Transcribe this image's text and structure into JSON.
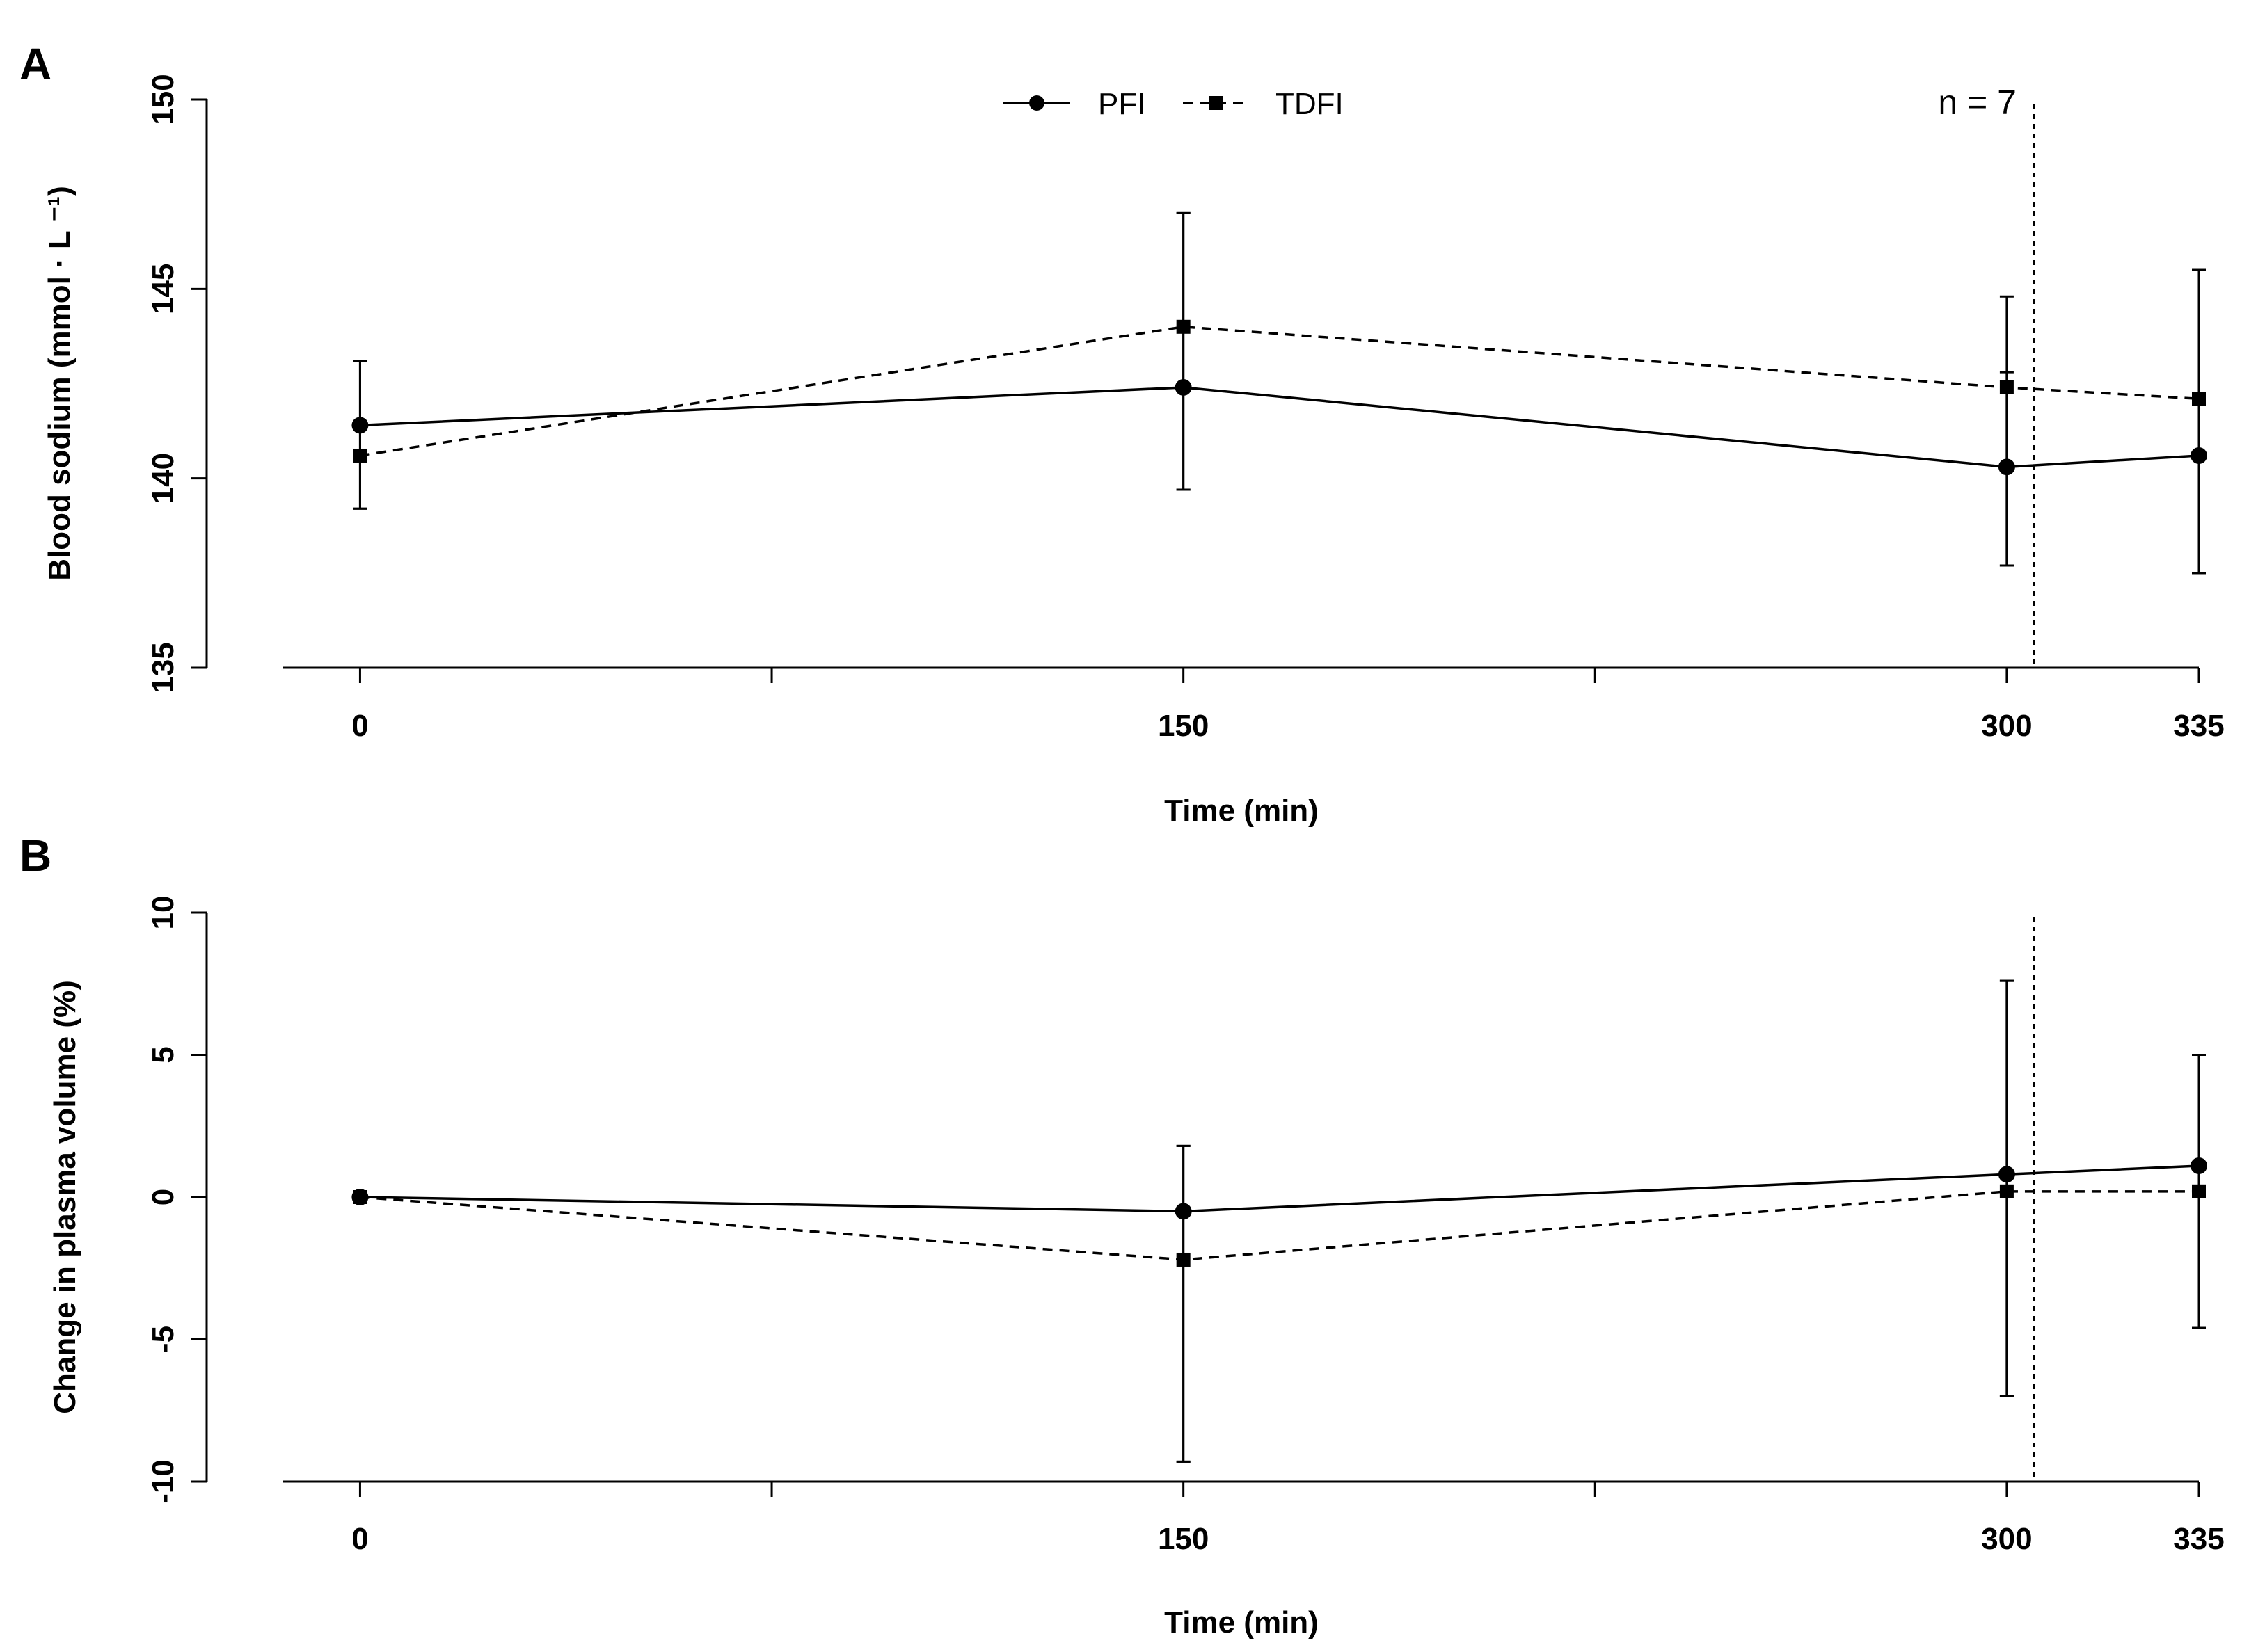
{
  "legend": {
    "items": [
      {
        "label": "PFI",
        "marker": "circle",
        "line": "solid"
      },
      {
        "label": "TDFI",
        "marker": "square",
        "line": "dashed"
      }
    ]
  },
  "annotation": {
    "text": "n = 7",
    "vline_x": 305
  },
  "chart_data": [
    {
      "panel": "A",
      "type": "line",
      "title": "",
      "xlabel": "Time (min)",
      "ylabel": "Blood sodium (mmol · L ⁻¹)",
      "x": [
        0,
        150,
        300,
        335
      ],
      "xlim": [
        -14,
        335
      ],
      "xticks": [
        0,
        75,
        150,
        225,
        300,
        335
      ],
      "xtick_labels": [
        "0",
        "",
        "150",
        "",
        "300",
        "335"
      ],
      "ylim": [
        135,
        150
      ],
      "yticks": [
        135,
        140,
        145,
        150
      ],
      "ytick_labels": [
        "135",
        "140",
        "145",
        "150"
      ],
      "series": [
        {
          "name": "PFI",
          "marker": "circle",
          "line": "solid",
          "values": [
            141.4,
            142.4,
            140.3,
            140.6
          ],
          "lower": [
            139.2,
            139.7,
            137.7,
            137.5
          ],
          "upper": [
            143.1,
            147.0,
            142.8,
            145.5
          ]
        },
        {
          "name": "TDFI",
          "marker": "square",
          "line": "dashed",
          "values": [
            140.6,
            144.0,
            142.4,
            142.1
          ],
          "lower": [
            139.2,
            139.7,
            137.7,
            137.5
          ],
          "upper": [
            143.1,
            147.0,
            144.8,
            145.5
          ]
        }
      ]
    },
    {
      "panel": "B",
      "type": "line",
      "title": "",
      "xlabel": "Time (min)",
      "ylabel": "Change in plasma volume (%)",
      "x": [
        0,
        150,
        300,
        335
      ],
      "xlim": [
        -14,
        335
      ],
      "xticks": [
        0,
        75,
        150,
        225,
        300,
        335
      ],
      "xtick_labels": [
        "0",
        "",
        "150",
        "",
        "300",
        "335"
      ],
      "ylim": [
        -10,
        10
      ],
      "yticks": [
        -10,
        -5,
        0,
        5,
        10
      ],
      "ytick_labels": [
        "-10",
        "-5",
        "0",
        "5",
        "10"
      ],
      "series": [
        {
          "name": "PFI",
          "marker": "circle",
          "line": "solid",
          "values": [
            0.0,
            -0.5,
            0.8,
            1.1
          ],
          "lower": [
            0.0,
            -9.3,
            -7.0,
            -4.6
          ],
          "upper": [
            0.0,
            1.8,
            7.6,
            5.0
          ]
        },
        {
          "name": "TDFI",
          "marker": "square",
          "line": "dashed",
          "values": [
            0.0,
            -2.2,
            0.2,
            0.2
          ],
          "lower": [
            0.0,
            -9.3,
            -7.0,
            -4.6
          ],
          "upper": [
            0.0,
            1.8,
            7.6,
            5.0
          ]
        }
      ]
    }
  ]
}
